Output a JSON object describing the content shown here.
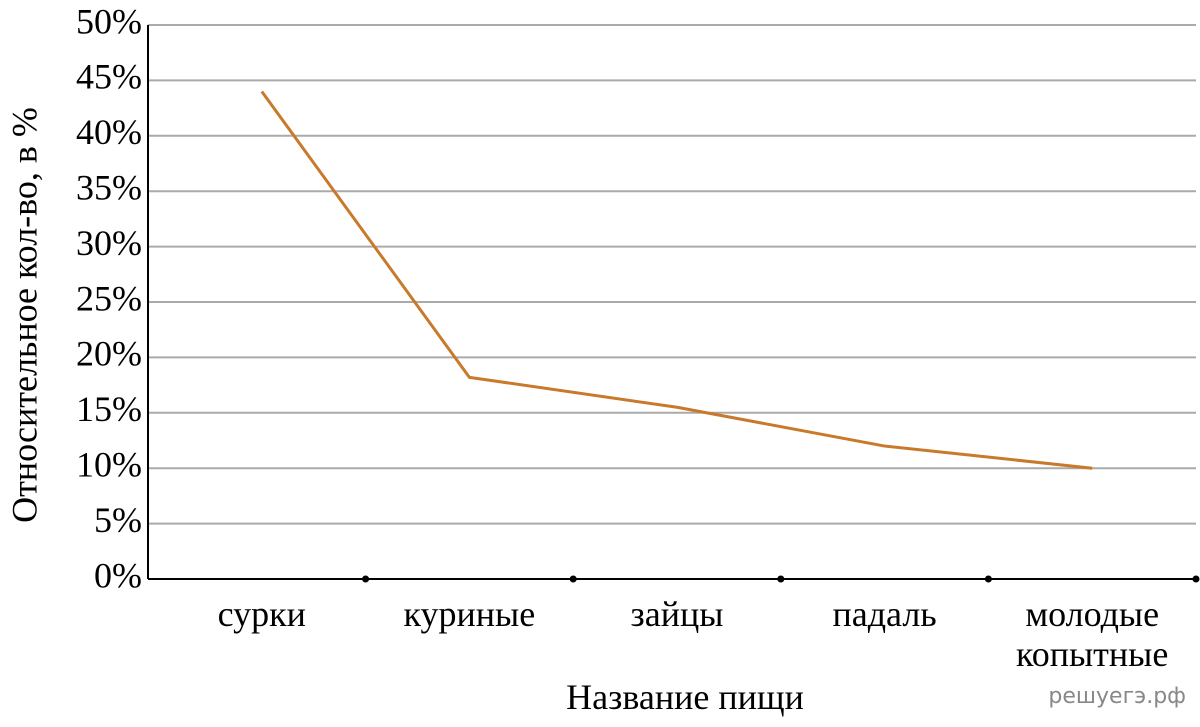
{
  "chart_data": {
    "type": "line",
    "x_label": "Название пищи",
    "y_label": "Относительное кол-во, в %",
    "categories": [
      "сурки",
      "куриные",
      "зайцы",
      "падаль",
      "молодые копытные"
    ],
    "series": [
      {
        "color": "#c8792a",
        "values": [
          44,
          18.2,
          15.5,
          12,
          10
        ]
      }
    ],
    "ylim": [
      0,
      50
    ],
    "yticks": [
      {
        "value": 0,
        "label": "0%"
      },
      {
        "value": 5,
        "label": "5%"
      },
      {
        "value": 10,
        "label": "10%"
      },
      {
        "value": 15,
        "label": "15%"
      },
      {
        "value": 20,
        "label": "20%"
      },
      {
        "value": 25,
        "label": "25%"
      },
      {
        "value": 30,
        "label": "30%"
      },
      {
        "value": 35,
        "label": "35%"
      },
      {
        "value": 40,
        "label": "40%"
      },
      {
        "value": 45,
        "label": "45%"
      },
      {
        "value": 50,
        "label": "50%"
      }
    ],
    "grid": true,
    "watermark": "решуегэ.рф"
  }
}
